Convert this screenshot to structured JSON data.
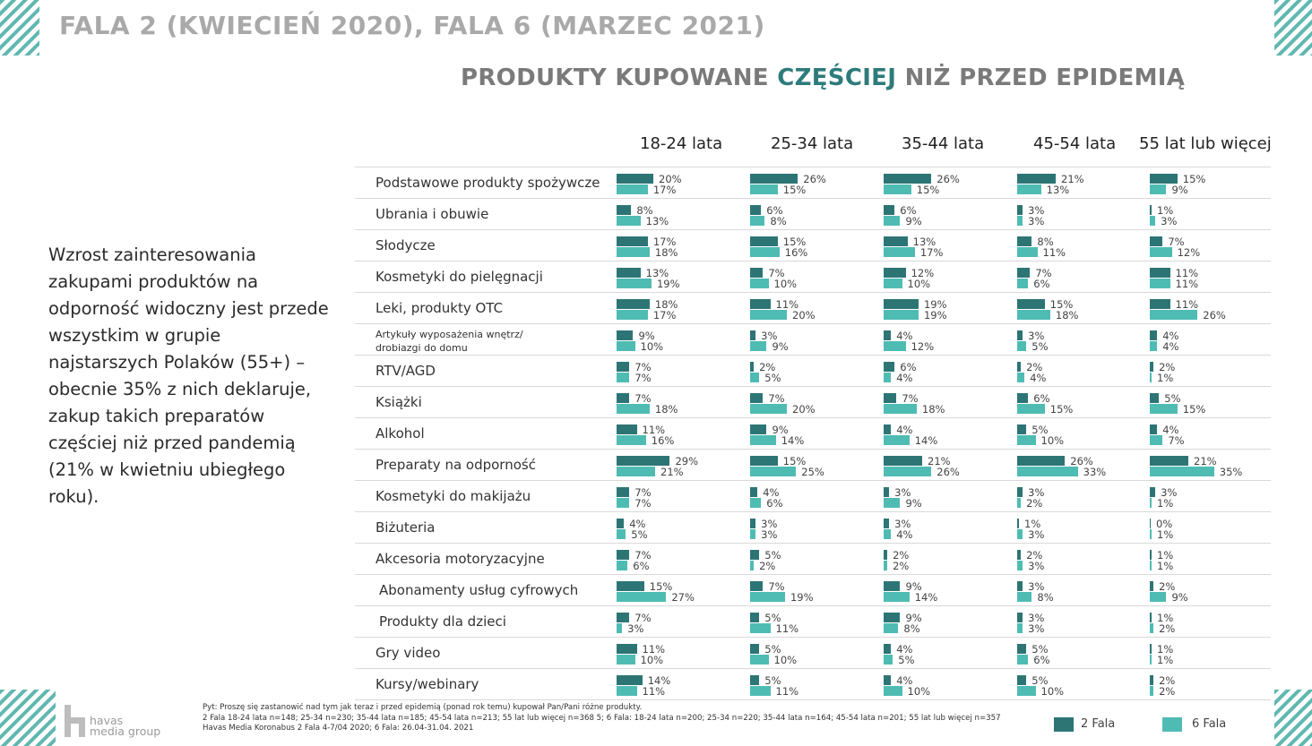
{
  "title": "FALA 2 (KWIECIEŃ 2020), FALA 6 (MARZEC 2021)",
  "subtitle": {
    "pre": "PRODUKTY KUPOWANE ",
    "accent": "CZĘŚCIEJ",
    "post": " NIŻ PRZED EPIDEMIĄ"
  },
  "colors": {
    "fala2": "#2d7575",
    "fala6": "#4fbcb3",
    "accent": "#2e7b7b"
  },
  "side_text": "Wzrost zainteresowania zakupami produktów na odporność widoczny jest przede wszystkim w grupie najstarszych Polaków (55+) – obecnie 35% z nich deklaruje, zakup takich preparatów częściej niż przed pandemią (21% w kwietniu ubiegłego roku).",
  "chart_data": {
    "type": "bar",
    "orientation": "horizontal",
    "groups": [
      "18-24 lata",
      "25-34 lata",
      "35-44 lata",
      "45-54 lata",
      "55 lat lub więcej"
    ],
    "categories": [
      "Podstawowe produkty spożywcze",
      "Ubrania i obuwie",
      "Słodycze",
      "Kosmetyki do pielęgnacji",
      "Leki, produkty OTC",
      "Artykuły wyposażenia wnętrz/ drobiazgi do domu",
      "RTV/AGD",
      "Książki",
      "Alkohol",
      "Preparaty na odporność",
      "Kosmetyki do makijażu",
      "Biżuteria",
      "Akcesoria motoryzacyjne",
      "Abonamenty usług cyfrowych",
      "Produkty dla dzieci",
      "Gry video",
      "Kursy/webinary"
    ],
    "series": [
      {
        "name": "2 Fala",
        "values": [
          [
            20,
            26,
            26,
            21,
            15
          ],
          [
            8,
            6,
            6,
            3,
            1
          ],
          [
            17,
            15,
            13,
            8,
            7
          ],
          [
            13,
            7,
            12,
            7,
            11
          ],
          [
            18,
            11,
            19,
            15,
            11
          ],
          [
            9,
            3,
            4,
            3,
            4
          ],
          [
            7,
            2,
            6,
            2,
            2
          ],
          [
            7,
            7,
            7,
            6,
            5
          ],
          [
            11,
            9,
            4,
            5,
            4
          ],
          [
            29,
            15,
            21,
            26,
            21
          ],
          [
            7,
            4,
            3,
            3,
            3
          ],
          [
            4,
            3,
            3,
            1,
            0
          ],
          [
            7,
            5,
            2,
            2,
            1
          ],
          [
            15,
            7,
            9,
            3,
            2
          ],
          [
            7,
            5,
            9,
            3,
            1
          ],
          [
            11,
            5,
            4,
            5,
            1
          ],
          [
            14,
            5,
            4,
            5,
            2
          ]
        ]
      },
      {
        "name": "6 Fala",
        "values": [
          [
            17,
            15,
            15,
            13,
            9
          ],
          [
            13,
            8,
            9,
            3,
            3
          ],
          [
            18,
            16,
            17,
            11,
            12
          ],
          [
            19,
            10,
            10,
            6,
            11
          ],
          [
            17,
            20,
            19,
            18,
            26
          ],
          [
            10,
            9,
            12,
            5,
            4
          ],
          [
            7,
            5,
            4,
            4,
            1
          ],
          [
            18,
            20,
            18,
            15,
            15
          ],
          [
            16,
            14,
            14,
            10,
            7
          ],
          [
            21,
            25,
            26,
            33,
            35
          ],
          [
            7,
            6,
            9,
            2,
            1
          ],
          [
            5,
            3,
            4,
            3,
            1
          ],
          [
            6,
            2,
            2,
            3,
            1
          ],
          [
            27,
            19,
            14,
            8,
            9
          ],
          [
            3,
            11,
            8,
            3,
            2
          ],
          [
            10,
            10,
            5,
            6,
            1
          ],
          [
            11,
            11,
            10,
            10,
            2
          ]
        ]
      }
    ],
    "legend": [
      "2 Fala",
      "6 Fala"
    ],
    "legend_position": "bottom-right",
    "unit": "%",
    "xlim": [
      0,
      35
    ]
  },
  "footer": {
    "line1": "Pyt: Proszę się zastanowić nad tym jak teraz i  przed epidemią (ponad rok temu) kupował Pan/Pani różne produkty.",
    "line2": "2 Fala 18-24 lata n=148; 25-34 n=230; 35-44 lata n=185; 45-54 lata n=213; 55 lat lub więcej n=368 5; 6 Fala: 18-24 lata n=200; 25-34 n=220; 35-44 lata n=164; 45-54 lata n=201; 55 lat lub więcej n=357",
    "line3": "Havas Media Koronabus 2 Fala 4-7/04 2020; 6 Fala: 26.04-31.04. 2021"
  },
  "logo": {
    "line1": "havas",
    "line2": "media group"
  }
}
